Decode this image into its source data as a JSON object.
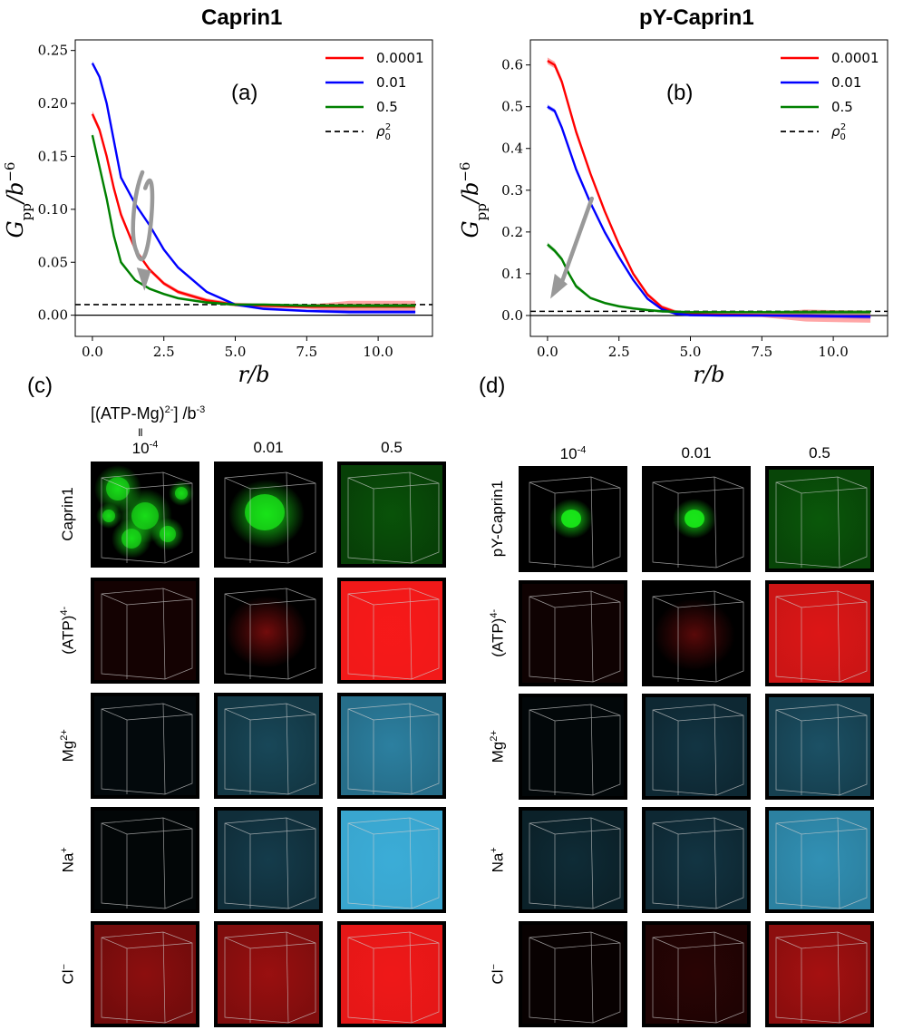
{
  "titles": {
    "left": "Caprin1",
    "right": "pY-Caprin1"
  },
  "panel_labels": {
    "a": "(a)",
    "b": "(b)",
    "c": "(c)",
    "d": "(d)"
  },
  "axis": {
    "x_label": "r/b",
    "y_label_main": "G",
    "y_label_sub": "pp",
    "y_label_tail": "/b",
    "y_label_exp": "−6"
  },
  "legend": {
    "entries": [
      "0.0001",
      "0.01",
      "0.5"
    ],
    "rho_main": "ρ",
    "rho_sub": "0",
    "rho_sup": "2",
    "colors": [
      "#ff0000",
      "#0000ff",
      "#008000"
    ]
  },
  "chart_data": [
    {
      "type": "line",
      "title": "Caprin1",
      "xlabel": "r/b",
      "ylabel": "G_pp/b^-6",
      "xlim": [
        -0.6,
        11.9
      ],
      "ylim": [
        -0.02,
        0.26
      ],
      "xticks": [
        "0.0",
        "2.5",
        "5.0",
        "7.5",
        "10.0"
      ],
      "yticks": [
        "0.00",
        "0.05",
        "0.10",
        "0.15",
        "0.20",
        "0.25"
      ],
      "reference_line": 0.01,
      "series": [
        {
          "name": "0.0001",
          "color": "#ff0000",
          "x": [
            0,
            0.25,
            0.5,
            0.75,
            1.0,
            1.5,
            2.0,
            2.5,
            3.0,
            4.0,
            5.0,
            6.0,
            7.5,
            9.0,
            10.5,
            11.3
          ],
          "y": [
            0.19,
            0.175,
            0.15,
            0.12,
            0.095,
            0.062,
            0.043,
            0.03,
            0.022,
            0.014,
            0.01,
            0.009,
            0.008,
            0.008,
            0.008,
            0.008
          ]
        },
        {
          "name": "0.01",
          "color": "#0000ff",
          "x": [
            0,
            0.25,
            0.5,
            0.75,
            1.0,
            1.5,
            2.0,
            2.5,
            3.0,
            4.0,
            5.0,
            6.0,
            7.5,
            9.0,
            10.5,
            11.3
          ],
          "y": [
            0.238,
            0.225,
            0.2,
            0.165,
            0.13,
            0.105,
            0.085,
            0.062,
            0.045,
            0.022,
            0.01,
            0.006,
            0.004,
            0.003,
            0.003,
            0.003
          ]
        },
        {
          "name": "0.5",
          "color": "#008000",
          "x": [
            0,
            0.25,
            0.5,
            0.75,
            1.0,
            1.5,
            2.0,
            2.5,
            3.0,
            4.0,
            5.0,
            6.0,
            7.5,
            9.0,
            10.5,
            11.3
          ],
          "y": [
            0.17,
            0.14,
            0.11,
            0.075,
            0.05,
            0.033,
            0.025,
            0.02,
            0.016,
            0.012,
            0.01,
            0.01,
            0.009,
            0.009,
            0.009,
            0.009
          ]
        }
      ]
    },
    {
      "type": "line",
      "title": "pY-Caprin1",
      "xlabel": "r/b",
      "ylabel": "G_pp/b^-6",
      "xlim": [
        -0.6,
        11.9
      ],
      "ylim": [
        -0.05,
        0.66
      ],
      "xticks": [
        "0.0",
        "2.5",
        "5.0",
        "7.5",
        "10.0"
      ],
      "yticks": [
        "0.0",
        "0.1",
        "0.2",
        "0.3",
        "0.4",
        "0.5",
        "0.6"
      ],
      "reference_line": 0.01,
      "series": [
        {
          "name": "0.0001",
          "color": "#ff0000",
          "x": [
            0,
            0.25,
            0.5,
            0.75,
            1.0,
            1.5,
            2.0,
            2.5,
            3.0,
            3.5,
            4.0,
            4.5,
            5.0,
            6.0,
            7.5,
            9.0,
            10.5,
            11.3
          ],
          "y": [
            0.61,
            0.6,
            0.56,
            0.5,
            0.44,
            0.34,
            0.25,
            0.17,
            0.1,
            0.05,
            0.02,
            0.008,
            0.003,
            0.002,
            0.001,
            0.0,
            -0.002,
            -0.003
          ]
        },
        {
          "name": "0.01",
          "color": "#0000ff",
          "x": [
            0,
            0.25,
            0.5,
            0.75,
            1.0,
            1.5,
            2.0,
            2.5,
            3.0,
            3.5,
            4.0,
            4.5,
            5.0,
            6.0,
            7.5,
            9.0,
            10.5,
            11.3
          ],
          "y": [
            0.5,
            0.49,
            0.45,
            0.4,
            0.35,
            0.27,
            0.2,
            0.14,
            0.085,
            0.04,
            0.015,
            0.004,
            0.001,
            0.0,
            0.0,
            -0.001,
            -0.002,
            -0.003
          ]
        },
        {
          "name": "0.5",
          "color": "#008000",
          "x": [
            0,
            0.25,
            0.5,
            0.75,
            1.0,
            1.5,
            2.0,
            2.5,
            3.0,
            3.5,
            4.0,
            4.5,
            5.0,
            6.0,
            7.5,
            9.0,
            10.5,
            11.3
          ],
          "y": [
            0.17,
            0.155,
            0.135,
            0.1,
            0.07,
            0.042,
            0.03,
            0.022,
            0.017,
            0.013,
            0.01,
            0.009,
            0.008,
            0.008,
            0.008,
            0.008,
            0.008,
            0.008
          ]
        }
      ]
    }
  ],
  "grid_left": {
    "header": "[(ATP-Mg)",
    "header_sup": "2-",
    "header_tail": "] /b",
    "header_exp": "-3",
    "equals_mark": "II",
    "columns": [
      {
        "main": "10",
        "sup": "-4"
      },
      {
        "main": "0.01",
        "sup": ""
      },
      {
        "main": "0.5",
        "sup": ""
      }
    ],
    "rows": [
      {
        "main": "Caprin1",
        "sup": ""
      },
      {
        "main": "(ATP)",
        "sup": "4-"
      },
      {
        "main": "Mg",
        "sup": "2+"
      },
      {
        "main": "Na",
        "sup": "+"
      },
      {
        "main": "Cl",
        "sup": "−"
      }
    ]
  },
  "grid_right": {
    "columns": [
      {
        "main": "10",
        "sup": "-4"
      },
      {
        "main": "0.01",
        "sup": ""
      },
      {
        "main": "0.5",
        "sup": ""
      }
    ],
    "rows": [
      {
        "main": "pY-Caprin1",
        "sup": ""
      },
      {
        "main": "(ATP)",
        "sup": "4-"
      },
      {
        "main": "Mg",
        "sup": "2+"
      },
      {
        "main": "Na",
        "sup": "+"
      },
      {
        "main": "Cl",
        "sup": "−"
      }
    ]
  },
  "tile_colors": {
    "green": "#19e619",
    "red": "#ff1a1a",
    "cyan": "#3fb8e6"
  }
}
